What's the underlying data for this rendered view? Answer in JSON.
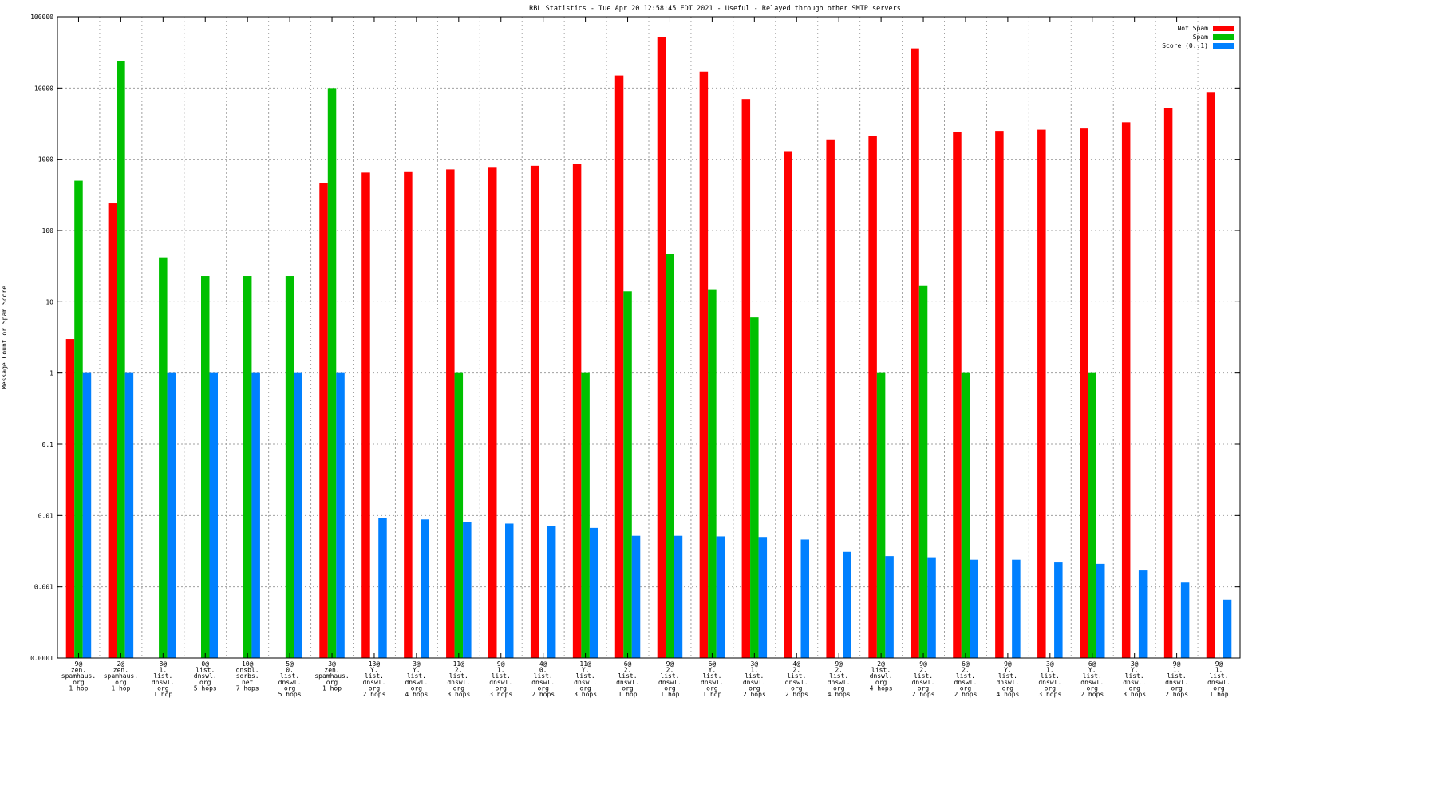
{
  "chart_data": {
    "type": "bar",
    "title": "RBL Statistics - Tue Apr 20 12:58:45 EDT 2021 - Useful - Relayed through other SMTP servers",
    "xlabel": "",
    "ylabel": "Message Count or Spam Score",
    "yscale": "log",
    "ylim": [
      0.0001,
      100000
    ],
    "yticks": [
      "0.0001",
      "0.001",
      "0.01",
      "0.1",
      "1",
      "10",
      "100",
      "1000",
      "10000",
      "100000"
    ],
    "grid": true,
    "legend_position": "top-right",
    "categories": [
      [
        "9@",
        "zen.",
        "spamhaus.",
        "org",
        "1 hop"
      ],
      [
        "2@",
        "zen.",
        "spamhaus.",
        "org",
        "1 hop"
      ],
      [
        "8@",
        "1.",
        "list.",
        "dnswl.",
        "org",
        "1 hop"
      ],
      [
        "0@",
        "list.",
        "dnswl.",
        "org",
        "5 hops"
      ],
      [
        "10@",
        "dnsbl.",
        "sorbs.",
        "net",
        "7 hops"
      ],
      [
        "5@",
        "0.",
        "list.",
        "dnswl.",
        "org",
        "5 hops"
      ],
      [
        "3@",
        "zen.",
        "spamhaus.",
        "org",
        "1 hop"
      ],
      [
        "13@",
        "Y.",
        "list.",
        "dnswl.",
        "org",
        "2 hops"
      ],
      [
        "3@",
        "Y.",
        "list.",
        "dnswl.",
        "org",
        "4 hops"
      ],
      [
        "11@",
        "2.",
        "list.",
        "dnswl.",
        "org",
        "3 hops"
      ],
      [
        "9@",
        "1.",
        "list.",
        "dnswl.",
        "org",
        "3 hops"
      ],
      [
        "4@",
        "0.",
        "list.",
        "dnswl.",
        "org",
        "2 hops"
      ],
      [
        "11@",
        "Y.",
        "list.",
        "dnswl.",
        "org",
        "3 hops"
      ],
      [
        "6@",
        "2.",
        "list.",
        "dnswl.",
        "org",
        "1 hop"
      ],
      [
        "9@",
        "2.",
        "list.",
        "dnswl.",
        "org",
        "1 hop"
      ],
      [
        "6@",
        "Y.",
        "list.",
        "dnswl.",
        "org",
        "1 hop"
      ],
      [
        "3@",
        "1.",
        "list.",
        "dnswl.",
        "org",
        "2 hops"
      ],
      [
        "4@",
        "2.",
        "list.",
        "dnswl.",
        "org",
        "2 hops"
      ],
      [
        "9@",
        "2.",
        "list.",
        "dnswl.",
        "org",
        "4 hops"
      ],
      [
        "2@",
        "list.",
        "dnswl.",
        "org",
        "4 hops"
      ],
      [
        "9@",
        "2.",
        "list.",
        "dnswl.",
        "org",
        "2 hops"
      ],
      [
        "6@",
        "2.",
        "list.",
        "dnswl.",
        "org",
        "2 hops"
      ],
      [
        "9@",
        "Y.",
        "list.",
        "dnswl.",
        "org",
        "4 hops"
      ],
      [
        "3@",
        "1.",
        "list.",
        "dnswl.",
        "org",
        "3 hops"
      ],
      [
        "6@",
        "Y.",
        "list.",
        "dnswl.",
        "org",
        "2 hops"
      ],
      [
        "3@",
        "Y.",
        "list.",
        "dnswl.",
        "org",
        "3 hops"
      ],
      [
        "9@",
        "1.",
        "list.",
        "dnswl.",
        "org",
        "2 hops"
      ],
      [
        "9@",
        "1.",
        "list.",
        "dnswl.",
        "org",
        "1 hop"
      ]
    ],
    "series": [
      {
        "name": "Not Spam",
        "color": "#ff0000",
        "values": [
          3,
          240,
          null,
          null,
          null,
          null,
          460,
          650,
          660,
          720,
          760,
          810,
          870,
          15000,
          52000,
          17000,
          7000,
          1300,
          1900,
          2100,
          36000,
          2400,
          2500,
          2600,
          2700,
          3300,
          5200,
          8800
        ]
      },
      {
        "name": "Spam",
        "color": "#00c000",
        "values": [
          500,
          24000,
          42,
          23,
          23,
          23,
          10000,
          null,
          null,
          1,
          null,
          null,
          1,
          14,
          47,
          15,
          6,
          null,
          null,
          1,
          17,
          1,
          null,
          null,
          1,
          null,
          null,
          null
        ]
      },
      {
        "name": "Score (0..1)",
        "color": "#0080ff",
        "values": [
          1,
          1,
          1,
          1,
          1,
          1,
          1,
          0.0091,
          0.0088,
          0.008,
          0.0077,
          0.0072,
          0.0067,
          0.0052,
          0.0052,
          0.0051,
          0.005,
          0.0046,
          0.0031,
          0.0027,
          0.0026,
          0.0024,
          0.0024,
          0.0022,
          0.0021,
          0.0017,
          0.00115,
          0.00066
        ]
      }
    ]
  }
}
